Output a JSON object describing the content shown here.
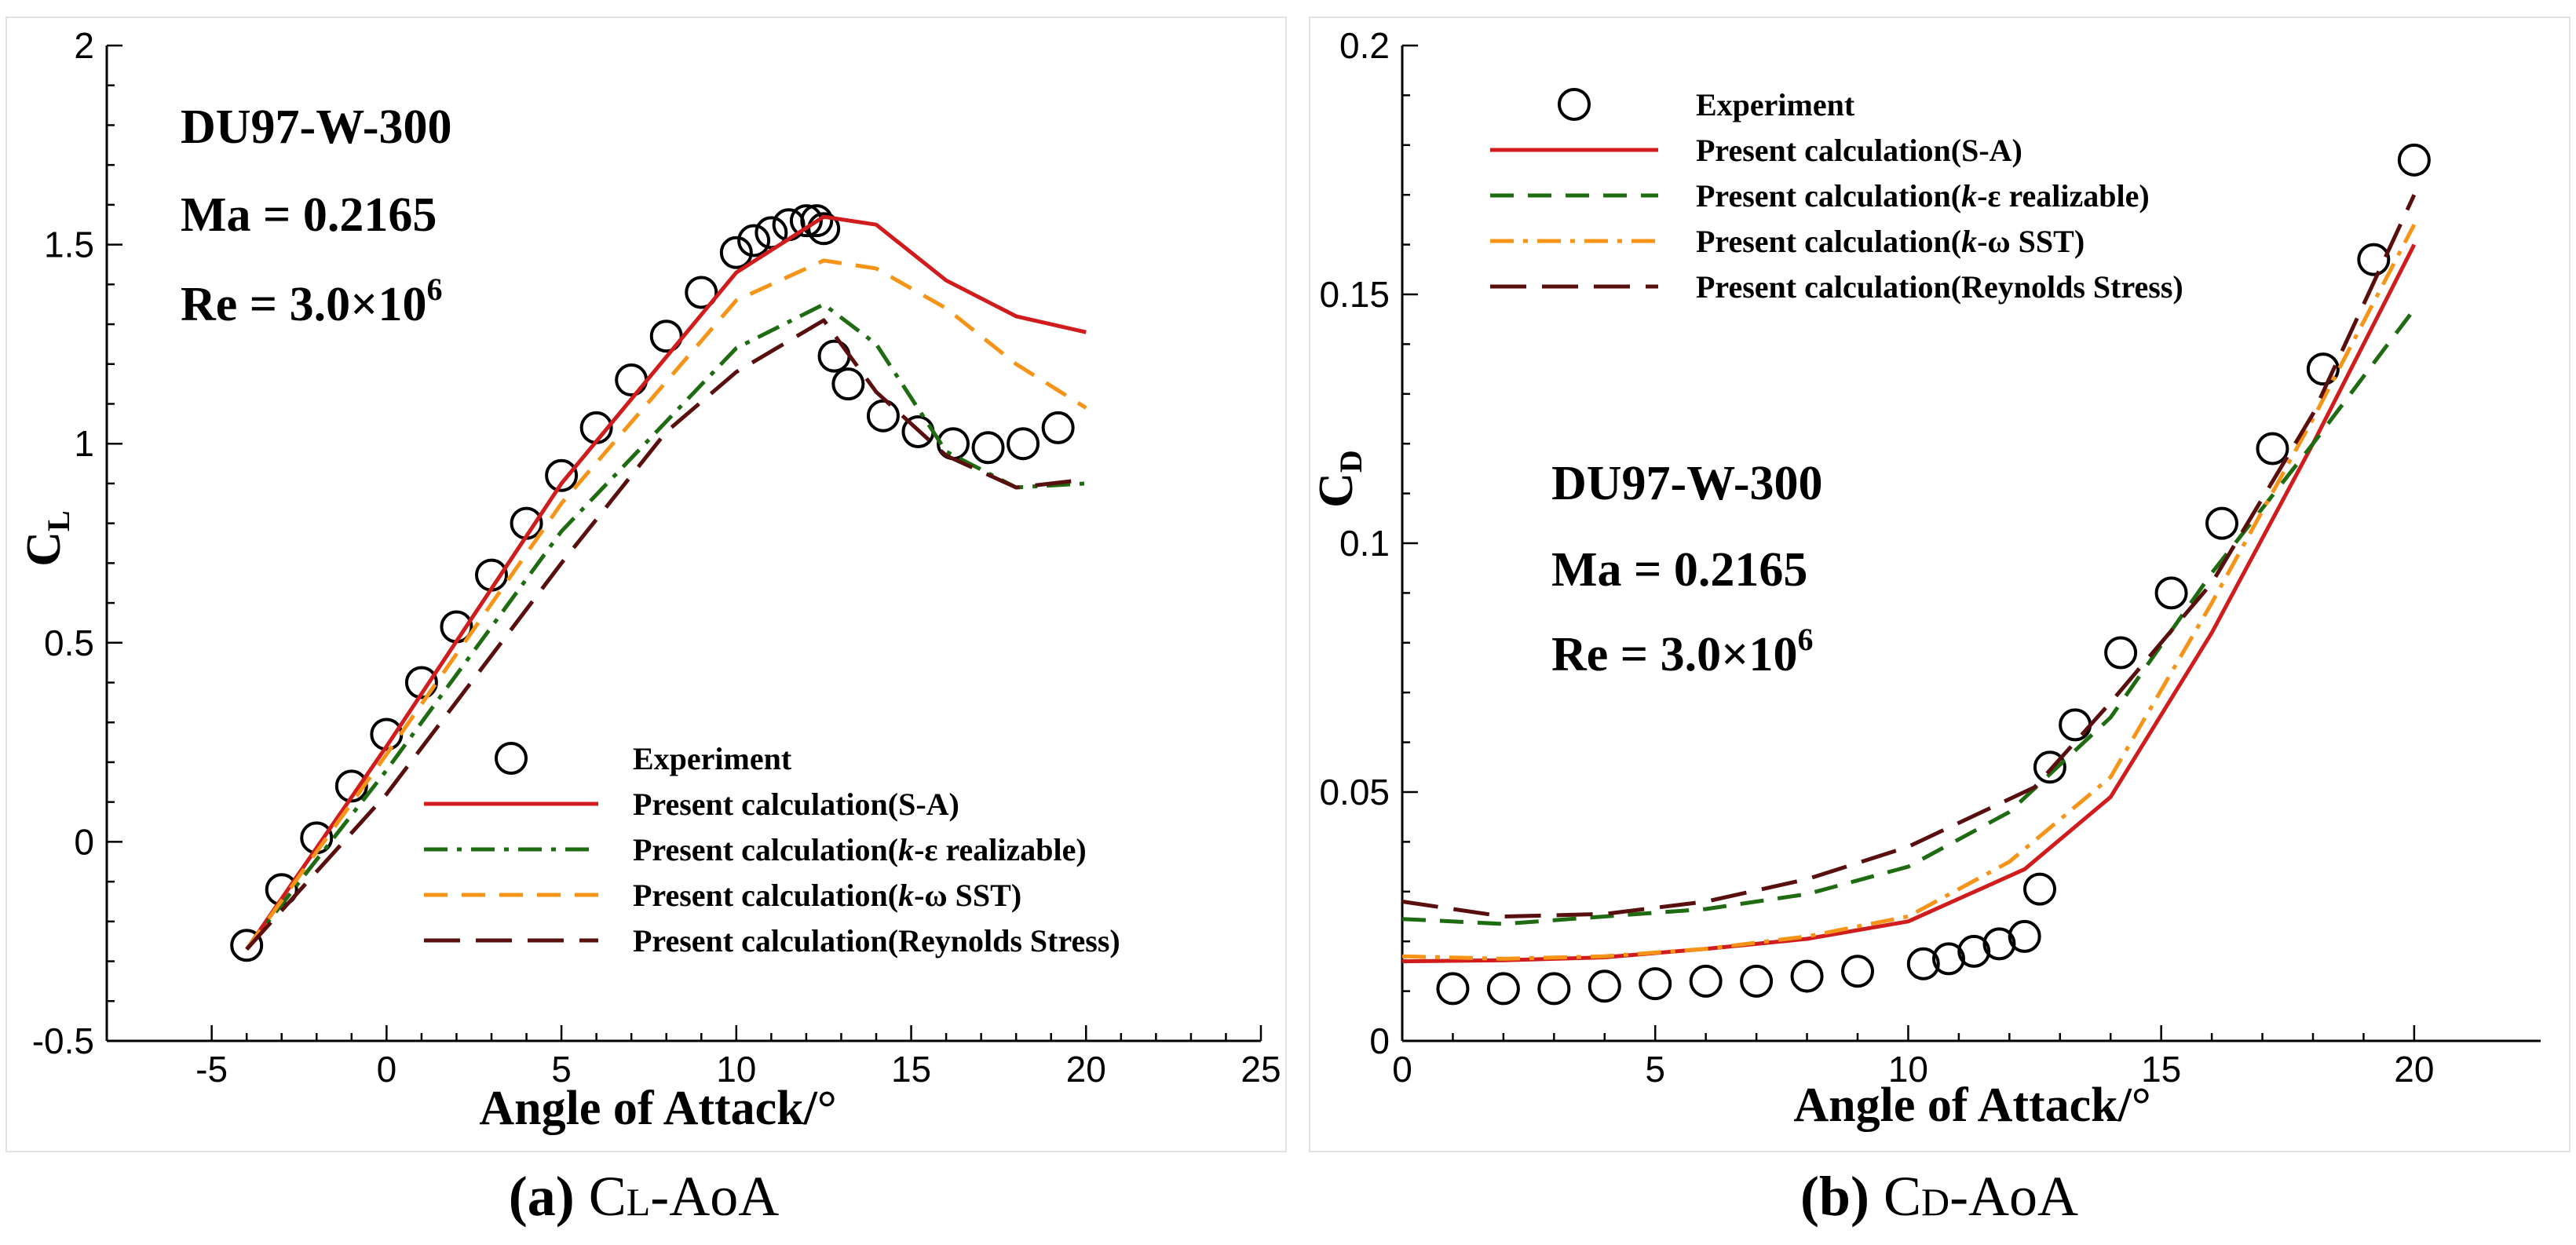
{
  "chart_data": [
    {
      "type": "line",
      "title": "",
      "xlabel": "Angle of Attack/°",
      "ylabel": "C_L",
      "ylabel_main": "C",
      "ylabel_sub": "L",
      "xlim": [
        -8,
        25
      ],
      "ylim": [
        -0.5,
        2
      ],
      "x_ticks": [
        -5,
        0,
        5,
        10,
        15,
        20,
        25
      ],
      "y_ticks": [
        -0.5,
        0,
        0.5,
        1,
        1.5,
        2
      ],
      "x_tick_labels": [
        "-5",
        "0",
        "5",
        "10",
        "15",
        "20",
        "25"
      ],
      "y_tick_labels": [
        "-0.5",
        "0",
        "0.5",
        "1",
        "1.5",
        "2"
      ],
      "annotations": {
        "airfoil": "DU97-W-300",
        "mach": "Ma = 0.2165",
        "reynolds_base": "Re = 3.0×10",
        "reynolds_exp": "6"
      },
      "legend": [
        {
          "label_pre": "Experiment",
          "label_italic": "",
          "label_post": ""
        },
        {
          "label_pre": "Present calculation(S-A)",
          "label_italic": "",
          "label_post": ""
        },
        {
          "label_pre": "Present calculation(",
          "label_italic": "k",
          "label_post": "-ε realizable)"
        },
        {
          "label_pre": "Present calculation(",
          "label_italic": "k",
          "label_post": "-ω SST)"
        },
        {
          "label_pre": "Present calculation(Reynolds Stress)",
          "label_italic": "",
          "label_post": ""
        }
      ],
      "series": [
        {
          "name": "Experiment",
          "style": "marker",
          "color": "#000000",
          "x": [
            -4,
            -3,
            -2,
            -1,
            0,
            1,
            2,
            3,
            4,
            5,
            6,
            7,
            8,
            9,
            10,
            10.5,
            11,
            11.5,
            12,
            12.3,
            12.5,
            12.8,
            13.2,
            14.2,
            15.2,
            16.2,
            17.2,
            18.2,
            19.2
          ],
          "y": [
            -0.26,
            -0.12,
            0.01,
            0.14,
            0.27,
            0.4,
            0.54,
            0.67,
            0.8,
            0.92,
            1.04,
            1.16,
            1.27,
            1.38,
            1.48,
            1.51,
            1.53,
            1.55,
            1.56,
            1.56,
            1.54,
            1.22,
            1.15,
            1.07,
            1.03,
            1.0,
            0.99,
            1.0,
            1.04
          ]
        },
        {
          "name": "Present calculation(S-A)",
          "style": "solid",
          "color": "#d01c1c",
          "x": [
            -4,
            0,
            5,
            10,
            12.5,
            14,
            16,
            18,
            20
          ],
          "y": [
            -0.27,
            0.24,
            0.9,
            1.43,
            1.57,
            1.55,
            1.41,
            1.32,
            1.28
          ]
        },
        {
          "name": "Present calculation(k-ε realizable)",
          "style": "dashdot",
          "color": "#1e6b12",
          "x": [
            -4,
            0,
            5,
            10,
            12.5,
            14,
            16,
            18,
            20
          ],
          "y": [
            -0.27,
            0.18,
            0.78,
            1.24,
            1.35,
            1.25,
            0.98,
            0.89,
            0.9
          ]
        },
        {
          "name": "Present calculation(k-ω SST)",
          "style": "dashed",
          "color": "#f59417",
          "x": [
            -4,
            0,
            5,
            10,
            12.5,
            14,
            16,
            18,
            20
          ],
          "y": [
            -0.27,
            0.22,
            0.85,
            1.36,
            1.46,
            1.44,
            1.34,
            1.2,
            1.09
          ]
        },
        {
          "name": "Present calculation(Reynolds Stress)",
          "style": "longdash",
          "color": "#5a0f0f",
          "x": [
            -4,
            0,
            5,
            8,
            10,
            12.5,
            14,
            16,
            18,
            20
          ],
          "y": [
            -0.27,
            0.12,
            0.7,
            1.03,
            1.18,
            1.31,
            1.13,
            0.97,
            0.89,
            0.91
          ]
        }
      ],
      "caption": {
        "label": "(a)",
        "text_main": "C",
        "text_sub": "L",
        "text_rest": "-AoA"
      }
    },
    {
      "type": "line",
      "title": "",
      "xlabel": "Angle of Attack/°",
      "ylabel": "C_D",
      "ylabel_main": "C",
      "ylabel_sub": "D",
      "xlim": [
        0,
        22.5
      ],
      "ylim": [
        0,
        0.2
      ],
      "x_ticks": [
        0,
        5,
        10,
        15,
        20
      ],
      "y_ticks": [
        0,
        0.05,
        0.1,
        0.15,
        0.2
      ],
      "x_tick_labels": [
        "0",
        "5",
        "10",
        "15",
        "20"
      ],
      "y_tick_labels": [
        "0",
        "0.05",
        "0.1",
        "0.15",
        "0.2"
      ],
      "annotations": {
        "airfoil": "DU97-W-300",
        "mach": "Ma = 0.2165",
        "reynolds_base": "Re = 3.0×10",
        "reynolds_exp": "6"
      },
      "legend": [
        {
          "label_pre": "Experiment",
          "label_italic": "",
          "label_post": ""
        },
        {
          "label_pre": "Present calculation(S-A)",
          "label_italic": "",
          "label_post": ""
        },
        {
          "label_pre": "Present calculation(",
          "label_italic": "k",
          "label_post": "-ε realizable)"
        },
        {
          "label_pre": "Present calculation(",
          "label_italic": "k",
          "label_post": "-ω SST)"
        },
        {
          "label_pre": "Present calculation(Reynolds Stress)",
          "label_italic": "",
          "label_post": ""
        }
      ],
      "series": [
        {
          "name": "Experiment",
          "style": "marker",
          "color": "#000000",
          "x": [
            1,
            2,
            3,
            4,
            5,
            6,
            7,
            8,
            9,
            10.3,
            10.8,
            11.3,
            11.8,
            12.3,
            12.6,
            12.8,
            13.3,
            14.2,
            15.2,
            16.2,
            17.2,
            18.2,
            19.2,
            20
          ],
          "y": [
            0.0105,
            0.0105,
            0.0105,
            0.011,
            0.0115,
            0.012,
            0.012,
            0.013,
            0.014,
            0.0155,
            0.0165,
            0.018,
            0.0195,
            0.021,
            0.0305,
            0.055,
            0.0635,
            0.078,
            0.09,
            0.104,
            0.119,
            0.135,
            0.157,
            0.177
          ]
        },
        {
          "name": "Present calculation(S-A)",
          "style": "solid",
          "color": "#d01c1c",
          "x": [
            0,
            2,
            4,
            6,
            8,
            10,
            12.3,
            14,
            16,
            18,
            20
          ],
          "y": [
            0.016,
            0.0162,
            0.0168,
            0.0185,
            0.0205,
            0.024,
            0.0345,
            0.049,
            0.082,
            0.12,
            0.16
          ]
        },
        {
          "name": "Present calculation(k-ε realizable)",
          "style": "dashed",
          "color": "#1e6b12",
          "x": [
            0,
            2,
            4,
            6,
            8,
            10,
            12,
            14,
            16,
            18,
            20
          ],
          "y": [
            0.0245,
            0.0235,
            0.025,
            0.0265,
            0.0295,
            0.035,
            0.046,
            0.065,
            0.094,
            0.12,
            0.147
          ]
        },
        {
          "name": "Present calculation(k-ω SST)",
          "style": "dashdot",
          "color": "#f59417",
          "x": [
            0,
            2,
            4,
            6,
            8,
            10,
            12,
            14,
            16,
            18,
            20
          ],
          "y": [
            0.017,
            0.0165,
            0.017,
            0.0185,
            0.021,
            0.025,
            0.036,
            0.053,
            0.088,
            0.125,
            0.164
          ]
        },
        {
          "name": "Present calculation(Reynolds Stress)",
          "style": "longdash",
          "color": "#5a0f0f",
          "x": [
            0,
            2,
            4,
            6,
            8,
            10,
            12.5,
            14,
            16,
            18,
            20
          ],
          "y": [
            0.028,
            0.025,
            0.0255,
            0.028,
            0.0325,
            0.039,
            0.051,
            0.068,
            0.092,
            0.126,
            0.17
          ]
        }
      ],
      "caption": {
        "label": "(b)",
        "text_main": "C",
        "text_sub": "D",
        "text_rest": "-AoA"
      }
    }
  ]
}
